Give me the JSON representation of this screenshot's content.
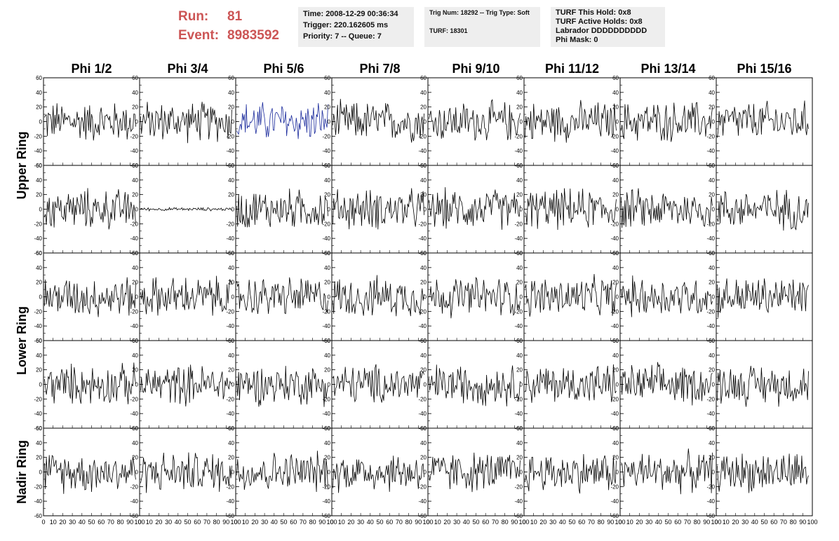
{
  "header": {
    "run_label": "Run:",
    "run_value": "81",
    "event_label": "Event:",
    "event_value": "8983592",
    "time_lines": [
      "Time: 2008-12-29 00:36:34",
      "Trigger: 220.162605 ms",
      "Priority: 7 -- Queue: 7"
    ],
    "trig_lines": [
      "Trig Num: 18292 -- Trig Type: Soft",
      "",
      "TURF: 18301"
    ],
    "turf_lines": [
      "TURF This Hold: 0x8",
      "TURF Active Holds: 0x8",
      "Labrador DDDDDDDDDD",
      "Phi Mask: 0"
    ]
  },
  "chart_data": {
    "type": "line",
    "columns": [
      "Phi 1/2",
      "Phi 3/4",
      "Phi 5/6",
      "Phi 7/8",
      "Phi 9/10",
      "Phi 11/12",
      "Phi 13/14",
      "Phi 15/16"
    ],
    "ring_labels": [
      {
        "text": "Upper Ring",
        "rows": [
          0,
          1
        ]
      },
      {
        "text": "Lower Ring",
        "rows": [
          2,
          3
        ]
      },
      {
        "text": "Nadir Ring",
        "rows": [
          4,
          4
        ]
      }
    ],
    "rows": 5,
    "xlim": [
      0,
      100
    ],
    "ylim": [
      -60,
      60
    ],
    "yticks": [
      -60,
      -40,
      -20,
      0,
      20,
      40,
      60
    ],
    "xtick_labels": [
      "0",
      "10",
      "20",
      "30",
      "40",
      "50",
      "60",
      "70",
      "80",
      "90",
      "100"
    ],
    "samples": 96,
    "amplitude": 25,
    "default_color": "#000000",
    "special_panels": [
      {
        "row": 0,
        "col": 2,
        "color": "#1a2a9c",
        "amplitude": 25
      },
      {
        "row": 1,
        "col": 1,
        "color": "#000000",
        "amplitude": 2
      }
    ]
  }
}
